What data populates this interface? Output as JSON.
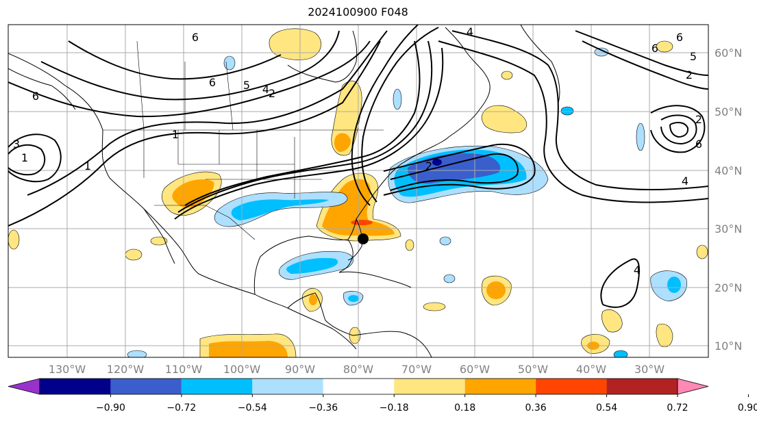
{
  "title": "2024100900 F048",
  "map": {
    "lon_labels": [
      "130°W",
      "120°W",
      "110°W",
      "100°W",
      "90°W",
      "80°W",
      "70°W",
      "60°W",
      "50°W",
      "40°W",
      "30°W"
    ],
    "lat_labels": [
      "60°N",
      "50°N",
      "40°N",
      "30°N",
      "20°N",
      "10°N"
    ],
    "contour_labels": [
      "6",
      "6",
      "2",
      "1",
      "1",
      "6",
      "5",
      "2",
      "2",
      "6",
      "4",
      "2",
      "4",
      "6",
      "4",
      "3",
      "1",
      "4",
      "5",
      "6",
      "1"
    ],
    "storm_marker": "hurricane-center"
  },
  "colorbar": {
    "ticks": [
      "−0.90",
      "−0.72",
      "−0.54",
      "−0.36",
      "−0.18",
      "0.18",
      "0.36",
      "0.54",
      "0.72",
      "0.90"
    ],
    "colors": [
      "#9932CC",
      "#00008B",
      "#3A5FCD",
      "#00BFFF",
      "#ADDFFF",
      "#FFFFFF",
      "#FFE680",
      "#FFA500",
      "#FF4500",
      "#B22222",
      "#FF88B4"
    ]
  },
  "colors": {
    "grid": "#a9a9a9",
    "coast": "#000000",
    "contour": "#000000"
  }
}
